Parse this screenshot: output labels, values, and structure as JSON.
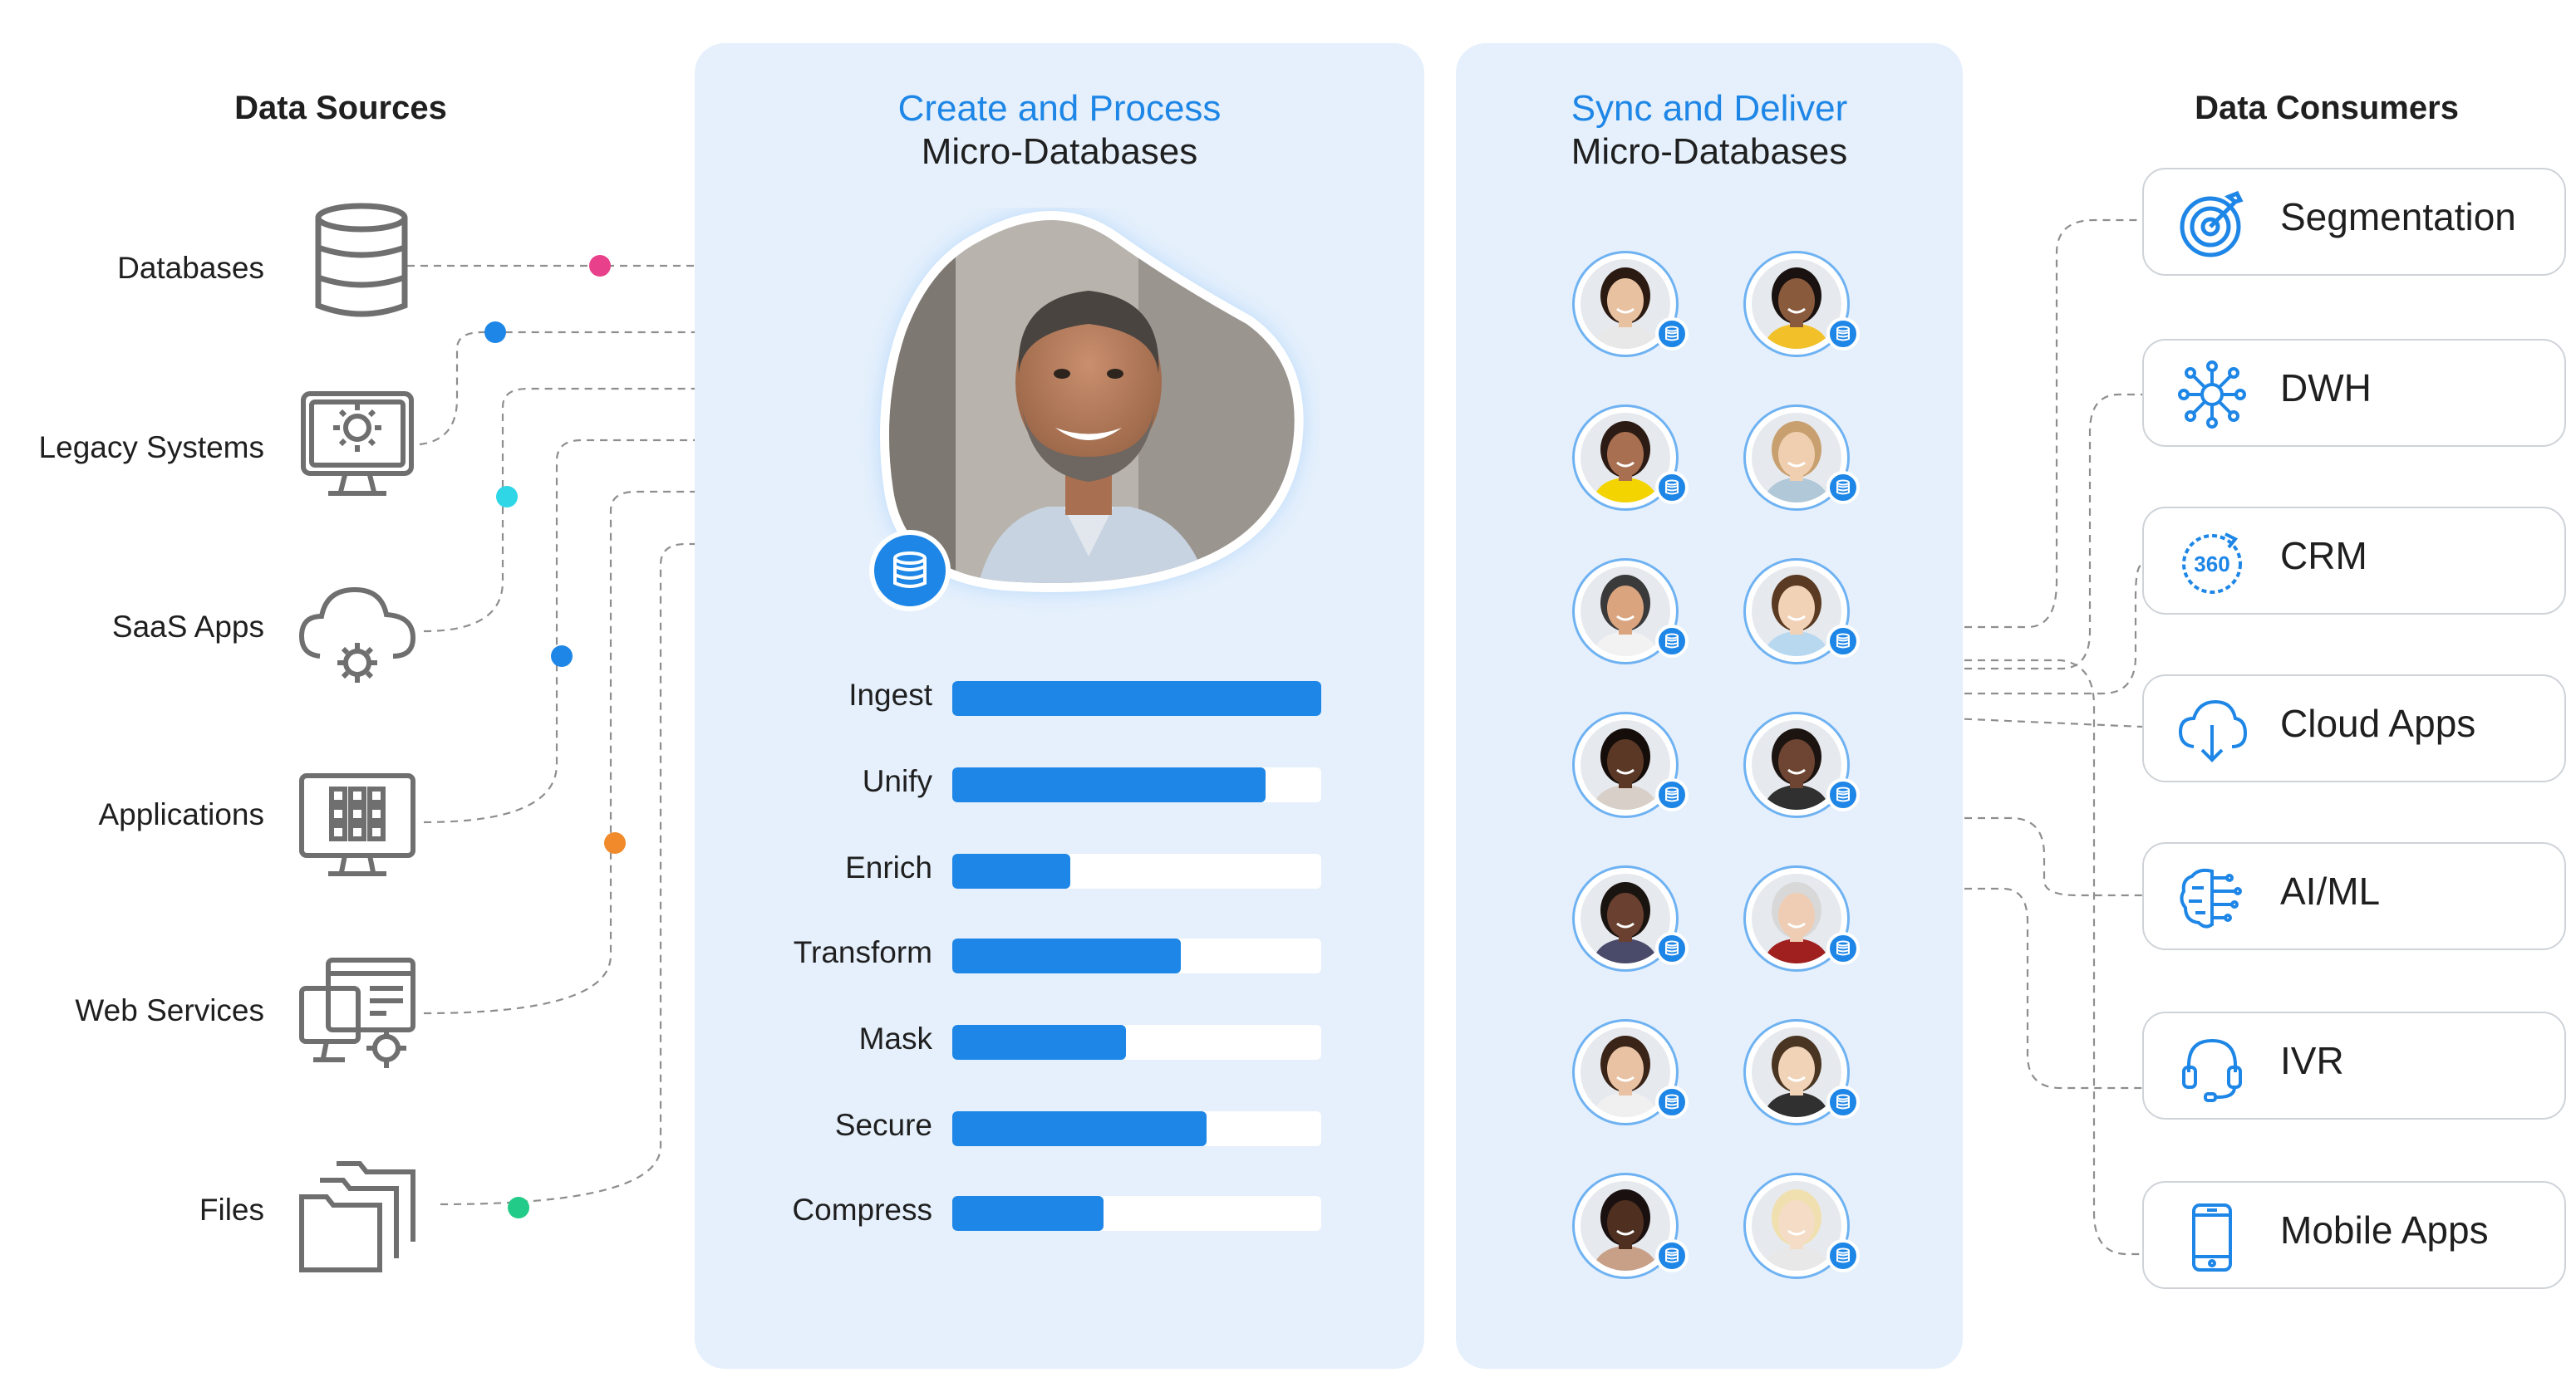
{
  "sources": {
    "title": "Data Sources",
    "items": [
      {
        "label": "Databases",
        "icon": "database-icon",
        "dot_color": "#e8408a"
      },
      {
        "label": "Legacy Systems",
        "icon": "legacy-system-gear-monitor-icon",
        "dot_color": "#1e86e6"
      },
      {
        "label": "SaaS Apps",
        "icon": "cloud-gear-icon",
        "dot_color": "#2fd6e6"
      },
      {
        "label": "Applications",
        "icon": "app-grid-monitor-icon",
        "dot_color": "#1e86e6"
      },
      {
        "label": "Web Services",
        "icon": "web-services-monitor-icon",
        "dot_color": "#f08a2a"
      },
      {
        "label": "Files",
        "icon": "folders-icon",
        "dot_color": "#22cc88"
      }
    ],
    "extra_dot_color": "#8a3ee0"
  },
  "create_panel": {
    "title_line1": "Create and Process",
    "title_line2": "Micro-Databases",
    "processes": [
      {
        "label": "Ingest",
        "level": 1.0
      },
      {
        "label": "Unify",
        "level": 0.85
      },
      {
        "label": "Enrich",
        "level": 0.32
      },
      {
        "label": "Transform",
        "level": 0.62
      },
      {
        "label": "Mask",
        "level": 0.47
      },
      {
        "label": "Secure",
        "level": 0.69
      },
      {
        "label": "Compress",
        "level": 0.41
      }
    ]
  },
  "sync_panel": {
    "title_line1": "Sync and Deliver",
    "title_line2": "Micro-Databases",
    "avatar_count": 14
  },
  "consumers": {
    "title": "Data Consumers",
    "items": [
      {
        "label": "Segmentation",
        "icon": "target-icon"
      },
      {
        "label": "DWH",
        "icon": "hub-network-icon"
      },
      {
        "label": "CRM",
        "icon": "360-view-icon"
      },
      {
        "label": "Cloud Apps",
        "icon": "cloud-download-icon"
      },
      {
        "label": "AI/ML",
        "icon": "brain-circuit-icon"
      },
      {
        "label": "IVR",
        "icon": "headset-icon"
      },
      {
        "label": "Mobile Apps",
        "icon": "mobile-phone-icon"
      }
    ]
  },
  "colors": {
    "accent": "#1e86e6",
    "panel": "#e5f0fc",
    "icon_gray": "#6f6f6f"
  }
}
